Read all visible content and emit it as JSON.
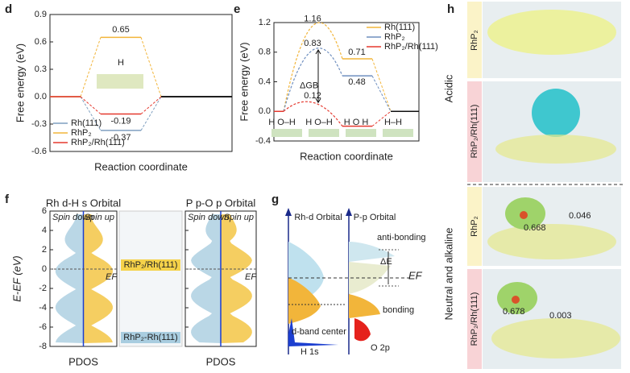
{
  "panel_letters": [
    "d",
    "e",
    "f",
    "g",
    "h"
  ],
  "chart_data": [
    {
      "type": "energy",
      "ylabel": "Free energy (eV)",
      "xlabel": "Reaction coordinate",
      "ylim": [
        -0.6,
        0.9
      ],
      "yticks": [
        0.9,
        0.6,
        0.3,
        {
          "value": 0,
          "label": "0.0"
        },
        -0.3,
        -0.6
      ],
      "legend": "lower left",
      "inset_label": "H",
      "series": [
        {
          "name": "Rh(111)",
          "color": "#7f9fc0",
          "values": [
            0,
            -0.37,
            0
          ]
        },
        {
          "name": "RhP₂",
          "color": "#f2b53a",
          "values": [
            0,
            0.65,
            0
          ]
        },
        {
          "name": "RhP₂/Rh(111)",
          "color": "#e5392f",
          "values": [
            0,
            -0.19,
            0
          ]
        }
      ]
    },
    {
      "type": "energy-barrier",
      "ylabel": "Free energy (eV)",
      "xlabel": "Reaction coordinate",
      "ylim": [
        -0.4,
        1.2
      ],
      "yticks": [
        -0.4,
        {
          "value": 0,
          "label": "0.0"
        },
        0.4,
        0.8,
        1.2
      ],
      "legend": "upper right",
      "annotation": "ΔGB",
      "state_labels": [
        "H O–H",
        "H O–H",
        "H O H",
        "H–H"
      ],
      "series": [
        {
          "name": "Rh(111)",
          "color": "#f2b53a",
          "values": [
            0,
            1.16,
            0.71,
            0
          ]
        },
        {
          "name": "RhP₂",
          "color": "#6f8fbf",
          "values": [
            0,
            0.83,
            0.48,
            0
          ]
        },
        {
          "name": "RhP₂/Rh(111)",
          "color": "#e5392f",
          "values": [
            0,
            0.12,
            -0.2,
            0
          ]
        }
      ]
    },
    {
      "type": "pdos",
      "ylabel": "E-EF (eV)",
      "xlabel": "PDOS",
      "ylim": [
        -8,
        6
      ],
      "yticks": [
        -8,
        -6,
        -4,
        -2,
        0,
        2,
        4,
        6
      ],
      "titles": [
        "Rh d-H s Orbital",
        "P p-O p Orbital"
      ],
      "spin_labels": [
        "Spin down",
        "Spin up"
      ],
      "fermi_label": "EF",
      "inset_labels": [
        "RhP₂/Rh(111)",
        "RhP₂-Rh(111)"
      ]
    }
  ],
  "schematic_g": {
    "left_title": "Rh-d Orbital",
    "right_title": "P-p Orbital",
    "anti_bonding": "anti-bonding",
    "delta_e": "ΔE",
    "fermi": "EF",
    "bonding": "bonding",
    "d_band_center": "d-band center",
    "h1s": "H 1s",
    "o2p": "O 2p"
  },
  "panel_h": {
    "acidic": "Acidic",
    "neutral": "Neutral and alkaline",
    "row_labels": [
      "RhP₂",
      "RhP₂/Rh(111)",
      "RhP₂",
      "RhP₂/Rh(111)"
    ],
    "charges": [
      "0.668",
      "0.046",
      "0.678",
      "0.003"
    ]
  }
}
